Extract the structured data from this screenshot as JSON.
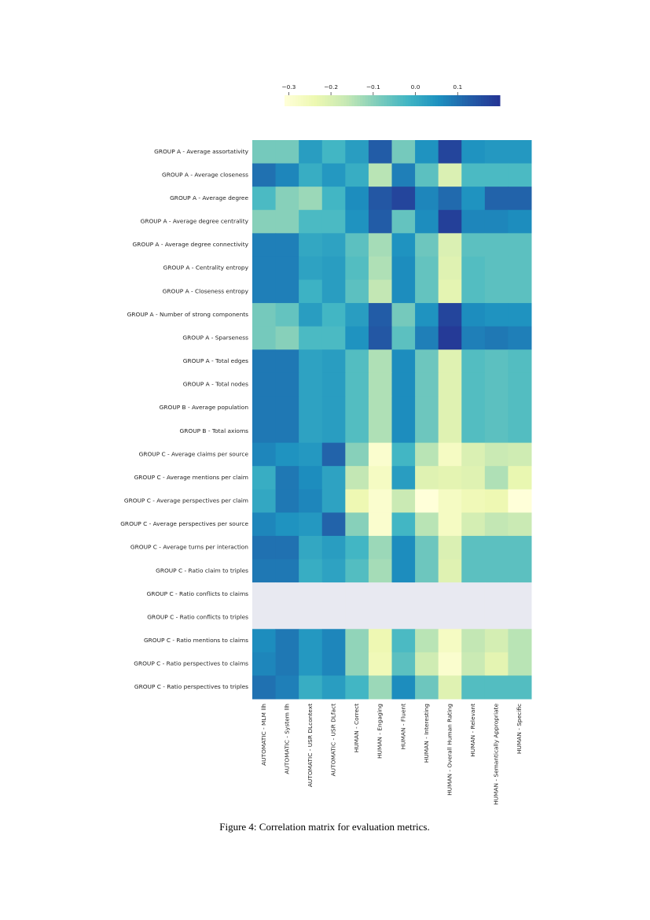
{
  "chart_data": {
    "type": "heatmap",
    "rows": [
      "GROUP A - Average assortativity",
      "GROUP A - Average closeness",
      "GROUP A - Average degree",
      "GROUP A - Average degree centrality",
      "GROUP A - Average degree connectivity",
      "GROUP A - Centrality entropy",
      "GROUP A - Closeness entropy",
      "GROUP A - Number of strong components",
      "GROUP A - Sparseness",
      "GROUP A - Total edges",
      "GROUP A - Total nodes",
      "GROUP B - Average population",
      "GROUP B - Total axioms",
      "GROUP C - Average claims per source",
      "GROUP C - Average mentions per claim",
      "GROUP C - Average perspectives per claim",
      "GROUP C - Average perspectives per source",
      "GROUP C - Average turns per interaction",
      "GROUP C - Ratio claim to triples",
      "GROUP C - Ratio conflicts to claims",
      "GROUP C - Ratio conflicts to triples",
      "GROUP C - Ratio mentions to claims",
      "GROUP C - Ratio perspectives to claims",
      "GROUP C - Ratio perspectives to triples"
    ],
    "columns": [
      "AUTOMATIC - MLM llh",
      "AUTOMATIC - System llh",
      "AUTOMATIC - USR DLcontext",
      "AUTOMATIC - USR DLfact",
      "HUMAN - Correct",
      "HUMAN - Engaging",
      "HUMAN - Fluent",
      "HUMAN - Interesting",
      "HUMAN - Overall Human Rating",
      "HUMAN - Relevant",
      "HUMAN - Semantically Appropriate",
      "HUMAN - Specific"
    ],
    "values": [
      [
        -0.08,
        -0.08,
        0.03,
        -0.02,
        0.03,
        0.13,
        -0.08,
        0.05,
        0.17,
        0.05,
        0.04,
        0.04
      ],
      [
        0.1,
        0.07,
        0.0,
        0.04,
        0.0,
        -0.15,
        0.08,
        -0.05,
        -0.2,
        -0.03,
        -0.03,
        -0.03
      ],
      [
        -0.03,
        -0.1,
        -0.12,
        -0.02,
        0.06,
        0.14,
        0.17,
        0.07,
        0.11,
        0.05,
        0.12,
        0.12
      ],
      [
        -0.1,
        -0.1,
        -0.03,
        -0.03,
        0.05,
        0.13,
        -0.06,
        0.06,
        0.18,
        0.07,
        0.07,
        0.06
      ],
      [
        0.08,
        0.08,
        0.01,
        0.02,
        -0.05,
        -0.13,
        0.05,
        -0.07,
        -0.2,
        -0.05,
        -0.05,
        -0.05
      ],
      [
        0.08,
        0.08,
        0.02,
        0.03,
        -0.04,
        -0.14,
        0.06,
        -0.06,
        -0.21,
        -0.04,
        -0.05,
        -0.05
      ],
      [
        0.08,
        0.08,
        -0.01,
        0.03,
        -0.05,
        -0.16,
        0.06,
        -0.06,
        -0.22,
        -0.04,
        -0.05,
        -0.05
      ],
      [
        -0.08,
        -0.06,
        0.03,
        -0.02,
        0.03,
        0.13,
        -0.08,
        0.05,
        0.17,
        0.06,
        0.05,
        0.05
      ],
      [
        -0.08,
        -0.1,
        -0.03,
        -0.03,
        0.05,
        0.14,
        -0.05,
        0.08,
        0.19,
        0.08,
        0.09,
        0.08
      ],
      [
        0.09,
        0.09,
        0.02,
        0.03,
        -0.04,
        -0.14,
        0.06,
        -0.07,
        -0.21,
        -0.04,
        -0.05,
        -0.04
      ],
      [
        0.09,
        0.09,
        0.02,
        0.03,
        -0.04,
        -0.14,
        0.06,
        -0.07,
        -0.21,
        -0.04,
        -0.05,
        -0.04
      ],
      [
        0.09,
        0.09,
        0.02,
        0.03,
        -0.04,
        -0.14,
        0.06,
        -0.07,
        -0.21,
        -0.04,
        -0.05,
        -0.04
      ],
      [
        0.09,
        0.09,
        0.02,
        0.03,
        -0.04,
        -0.14,
        0.06,
        -0.07,
        -0.21,
        -0.04,
        -0.05,
        -0.04
      ],
      [
        0.07,
        0.05,
        0.04,
        0.12,
        -0.1,
        -0.29,
        -0.02,
        -0.15,
        -0.27,
        -0.2,
        -0.17,
        -0.18
      ],
      [
        0.0,
        0.09,
        0.06,
        0.02,
        -0.16,
        -0.27,
        0.03,
        -0.21,
        -0.22,
        -0.21,
        -0.14,
        -0.23
      ],
      [
        0.01,
        0.09,
        0.07,
        0.02,
        -0.24,
        -0.29,
        -0.17,
        -0.31,
        -0.27,
        -0.25,
        -0.24,
        -0.31
      ],
      [
        0.07,
        0.05,
        0.04,
        0.12,
        -0.1,
        -0.29,
        -0.02,
        -0.15,
        -0.27,
        -0.19,
        -0.16,
        -0.17
      ],
      [
        0.1,
        0.1,
        0.01,
        0.03,
        -0.02,
        -0.12,
        0.06,
        -0.07,
        -0.2,
        -0.05,
        -0.05,
        -0.05
      ],
      [
        0.09,
        0.09,
        0.0,
        0.02,
        -0.04,
        -0.13,
        0.06,
        -0.07,
        -0.21,
        -0.05,
        -0.05,
        -0.05
      ],
      [
        null,
        null,
        null,
        null,
        null,
        null,
        null,
        null,
        null,
        null,
        null,
        null
      ],
      [
        null,
        null,
        null,
        null,
        null,
        null,
        null,
        null,
        null,
        null,
        null,
        null
      ],
      [
        0.06,
        0.09,
        0.04,
        0.07,
        -0.11,
        -0.24,
        -0.03,
        -0.15,
        -0.27,
        -0.16,
        -0.19,
        -0.15
      ],
      [
        0.07,
        0.09,
        0.04,
        0.07,
        -0.11,
        -0.25,
        -0.05,
        -0.18,
        -0.29,
        -0.17,
        -0.22,
        -0.15
      ],
      [
        0.1,
        0.08,
        0.0,
        0.03,
        -0.02,
        -0.12,
        0.06,
        -0.07,
        -0.21,
        -0.04,
        -0.04,
        -0.04
      ]
    ],
    "zlim": [
      -0.31,
      0.2
    ],
    "zticks": [
      {
        "value": -0.3,
        "label": "−0.3"
      },
      {
        "value": -0.2,
        "label": "−0.2"
      },
      {
        "value": -0.1,
        "label": "−0.1"
      },
      {
        "value": 0,
        "label": "0.0"
      },
      0.1
    ],
    "colorscale": [
      "#ffffd9",
      "#edf8b1",
      "#c7e9b4",
      "#7fcdbb",
      "#41b6c4",
      "#1d91c0",
      "#225ea8",
      "#253494"
    ],
    "null_color": "#e8e9f1",
    "caption": "Figure 4: Correlation matrix for evaluation metrics."
  }
}
